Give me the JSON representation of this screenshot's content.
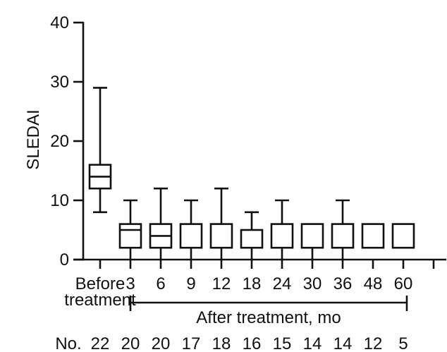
{
  "figure": {
    "background_color": "#ffffff",
    "line_color": "#111111"
  },
  "chart_data": {
    "type": "boxplot",
    "title": "",
    "ylabel": "SLEDAI",
    "ylim": [
      0,
      40
    ],
    "yticks": [
      "0",
      "10",
      "20",
      "30",
      "40"
    ],
    "grid": false,
    "categories": [
      {
        "label": "Before treatment",
        "label_lines": [
          "Before",
          "treatment"
        ],
        "n": 22,
        "whisker_low": 8,
        "q1": 12,
        "median": 14,
        "q3": 16,
        "whisker_high": 29
      },
      {
        "label": "3",
        "n": 20,
        "whisker_low": 0,
        "q1": 2,
        "median": 5,
        "q3": 6,
        "whisker_high": 10
      },
      {
        "label": "6",
        "n": 20,
        "whisker_low": 0,
        "q1": 2,
        "median": 4,
        "q3": 6,
        "whisker_high": 12
      },
      {
        "label": "9",
        "n": 17,
        "whisker_low": 0,
        "q1": 2,
        "median": null,
        "q3": 6,
        "whisker_high": 10
      },
      {
        "label": "12",
        "n": 18,
        "whisker_low": 0,
        "q1": 2,
        "median": null,
        "q3": 6,
        "whisker_high": 12
      },
      {
        "label": "18",
        "n": 16,
        "whisker_low": 0,
        "q1": 2,
        "median": null,
        "q3": 5,
        "whisker_high": 8
      },
      {
        "label": "24",
        "n": 15,
        "whisker_low": 0,
        "q1": 2,
        "median": null,
        "q3": 6,
        "whisker_high": 10
      },
      {
        "label": "30",
        "n": 14,
        "whisker_low": 0,
        "q1": 2,
        "median": null,
        "q3": 6,
        "whisker_high": null
      },
      {
        "label": "36",
        "n": 14,
        "whisker_low": 0,
        "q1": 2,
        "median": null,
        "q3": 6,
        "whisker_high": 10
      },
      {
        "label": "48",
        "n": 12,
        "whisker_low": null,
        "q1": 2,
        "median": null,
        "q3": 6,
        "whisker_high": null
      },
      {
        "label": "60",
        "n": 5,
        "whisker_low": null,
        "q1": 2,
        "median": null,
        "q3": 6,
        "whisker_high": null
      }
    ],
    "bracket": {
      "label": "After treatment, mo",
      "from_category": "3",
      "to_category": "60"
    },
    "counts_row": {
      "label": "No.",
      "values": [
        "22",
        "20",
        "20",
        "17",
        "18",
        "16",
        "15",
        "14",
        "14",
        "12",
        "5"
      ]
    }
  }
}
